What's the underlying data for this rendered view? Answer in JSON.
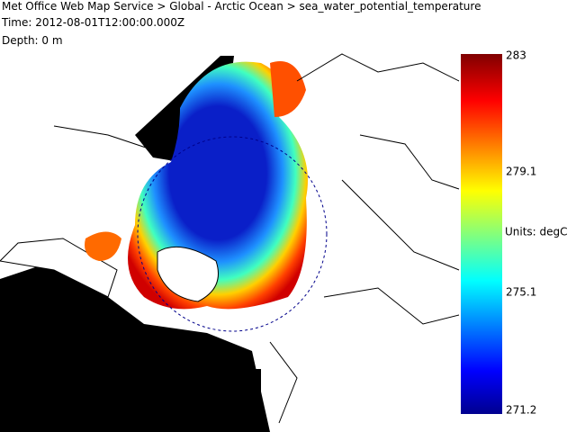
{
  "header": {
    "title": "Met Office Web Map Service > Global - Arctic Ocean > sea_water_potential_temperature",
    "time": "Time: 2012-08-01T12:00:00.000Z",
    "depth": "Depth: 0 m"
  },
  "colorbar": {
    "range": [
      271.2,
      283
    ],
    "ticks": [
      283,
      279.1,
      275.1,
      271.2
    ],
    "units_label": "Units: degC"
  }
}
